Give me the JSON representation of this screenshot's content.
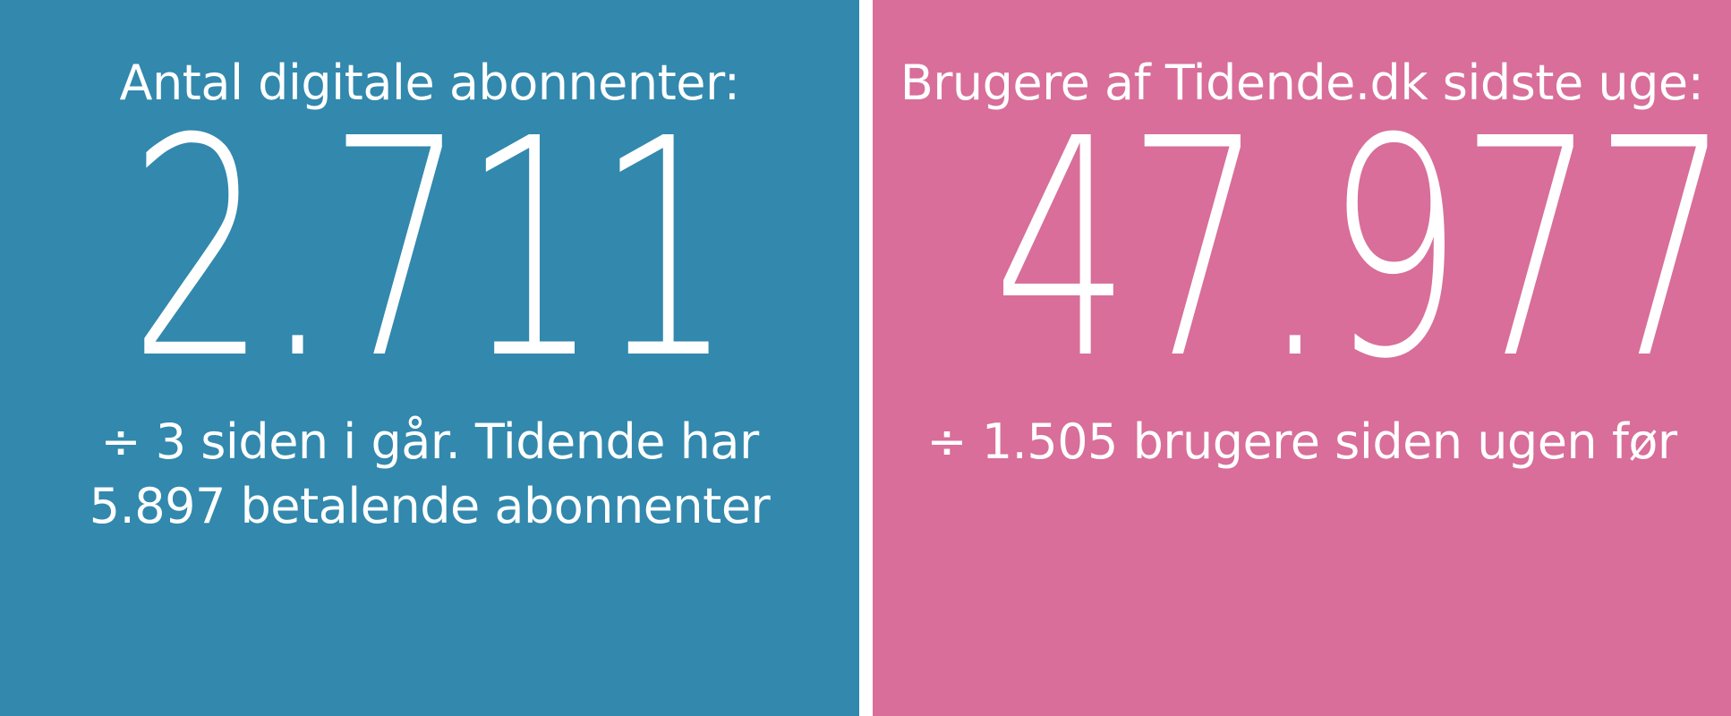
{
  "colors": {
    "left_panel_bg": "#3288ad",
    "right_panel_bg": "#d86e99",
    "divider": "#ffffff",
    "text": "#ffffff"
  },
  "left_panel": {
    "heading": "Antal digitale abonnenter:",
    "value": "2.711",
    "sub_line_1": "÷ 3 siden i går. Tidende har",
    "sub_line_2": "5.897 betalende abonnenter"
  },
  "right_panel": {
    "heading": "Brugere af Tidende.dk sidste uge:",
    "value": "47.977",
    "sub_line_1": "÷ 1.505 brugere siden ugen før"
  }
}
